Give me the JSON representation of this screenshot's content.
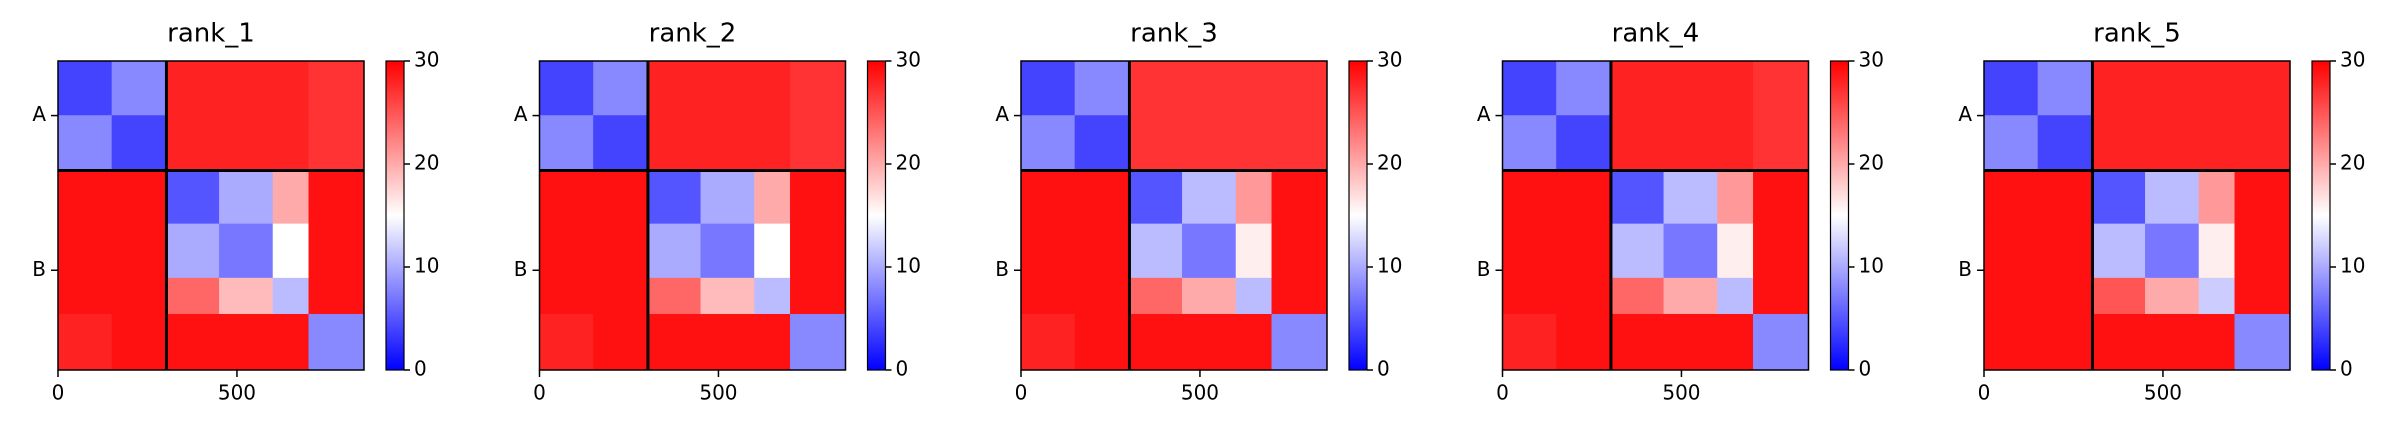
{
  "chart_data": [
    {
      "type": "heatmap",
      "title": "rank_1",
      "colormap": "bwr",
      "clim": [
        0,
        30
      ],
      "cticks": [
        0,
        10,
        20,
        30
      ],
      "edges": [
        0,
        150,
        303,
        450,
        600,
        700,
        855
      ],
      "xlim": [
        0,
        855
      ],
      "ylim": [
        0,
        855
      ],
      "xticks": [
        0,
        500
      ],
      "yticks": [
        {
          "value": 151,
          "label": "A"
        },
        {
          "value": 579,
          "label": "B"
        }
      ],
      "chain_boundaries": [
        303
      ],
      "values": [
        [
          4,
          8,
          28,
          28,
          28,
          27
        ],
        [
          8,
          4,
          28,
          28,
          28,
          27
        ],
        [
          29,
          29,
          5,
          10,
          20,
          29
        ],
        [
          29,
          29,
          10,
          7,
          15,
          29
        ],
        [
          29,
          29,
          24,
          19,
          11,
          29
        ],
        [
          28,
          29,
          29,
          29,
          29,
          8
        ]
      ]
    },
    {
      "type": "heatmap",
      "title": "rank_2",
      "colormap": "bwr",
      "clim": [
        0,
        30
      ],
      "cticks": [
        0,
        10,
        20,
        30
      ],
      "edges": [
        0,
        150,
        303,
        450,
        600,
        700,
        855
      ],
      "xlim": [
        0,
        855
      ],
      "ylim": [
        0,
        855
      ],
      "xticks": [
        0,
        500
      ],
      "yticks": [
        {
          "value": 151,
          "label": "A"
        },
        {
          "value": 579,
          "label": "B"
        }
      ],
      "chain_boundaries": [
        303
      ],
      "values": [
        [
          4,
          8,
          28,
          28,
          28,
          27
        ],
        [
          8,
          4,
          28,
          28,
          28,
          27
        ],
        [
          29,
          29,
          5,
          10,
          20,
          29
        ],
        [
          29,
          29,
          10,
          7,
          15,
          29
        ],
        [
          29,
          29,
          24,
          19,
          11,
          29
        ],
        [
          28,
          29,
          29,
          29,
          29,
          8
        ]
      ]
    },
    {
      "type": "heatmap",
      "title": "rank_3",
      "colormap": "bwr",
      "clim": [
        0,
        30
      ],
      "cticks": [
        0,
        10,
        20,
        30
      ],
      "edges": [
        0,
        150,
        303,
        450,
        600,
        700,
        855
      ],
      "xlim": [
        0,
        855
      ],
      "ylim": [
        0,
        855
      ],
      "xticks": [
        0,
        500
      ],
      "yticks": [
        {
          "value": 151,
          "label": "A"
        },
        {
          "value": 579,
          "label": "B"
        }
      ],
      "chain_boundaries": [
        303
      ],
      "values": [
        [
          4,
          8,
          27,
          27,
          27,
          27
        ],
        [
          8,
          4,
          27,
          27,
          27,
          27
        ],
        [
          29,
          29,
          5,
          11,
          21,
          29
        ],
        [
          29,
          29,
          11,
          7,
          16,
          29
        ],
        [
          29,
          29,
          24,
          20,
          11,
          29
        ],
        [
          28,
          29,
          29,
          29,
          29,
          8
        ]
      ]
    },
    {
      "type": "heatmap",
      "title": "rank_4",
      "colormap": "bwr",
      "clim": [
        0,
        30
      ],
      "cticks": [
        0,
        10,
        20,
        30
      ],
      "edges": [
        0,
        150,
        303,
        450,
        600,
        700,
        855
      ],
      "xlim": [
        0,
        855
      ],
      "ylim": [
        0,
        855
      ],
      "xticks": [
        0,
        500
      ],
      "yticks": [
        {
          "value": 151,
          "label": "A"
        },
        {
          "value": 579,
          "label": "B"
        }
      ],
      "chain_boundaries": [
        303
      ],
      "values": [
        [
          4,
          8,
          28,
          28,
          28,
          27
        ],
        [
          8,
          4,
          28,
          28,
          28,
          27
        ],
        [
          29,
          29,
          5,
          11,
          21,
          29
        ],
        [
          29,
          29,
          11,
          7,
          16,
          29
        ],
        [
          29,
          29,
          24,
          20,
          11,
          29
        ],
        [
          28,
          29,
          29,
          29,
          29,
          8
        ]
      ]
    },
    {
      "type": "heatmap",
      "title": "rank_5",
      "colormap": "bwr",
      "clim": [
        0,
        30
      ],
      "cticks": [
        0,
        10,
        20,
        30
      ],
      "edges": [
        0,
        150,
        303,
        450,
        600,
        700,
        855
      ],
      "xlim": [
        0,
        855
      ],
      "ylim": [
        0,
        855
      ],
      "xticks": [
        0,
        500
      ],
      "yticks": [
        {
          "value": 151,
          "label": "A"
        },
        {
          "value": 579,
          "label": "B"
        }
      ],
      "chain_boundaries": [
        303
      ],
      "values": [
        [
          4,
          8,
          28,
          28,
          28,
          28
        ],
        [
          8,
          4,
          28,
          28,
          28,
          28
        ],
        [
          29,
          29,
          5,
          11,
          21,
          29
        ],
        [
          29,
          29,
          11,
          7,
          16,
          29
        ],
        [
          29,
          29,
          25,
          20,
          12,
          29
        ],
        [
          29,
          29,
          29,
          29,
          29,
          8
        ]
      ]
    }
  ]
}
